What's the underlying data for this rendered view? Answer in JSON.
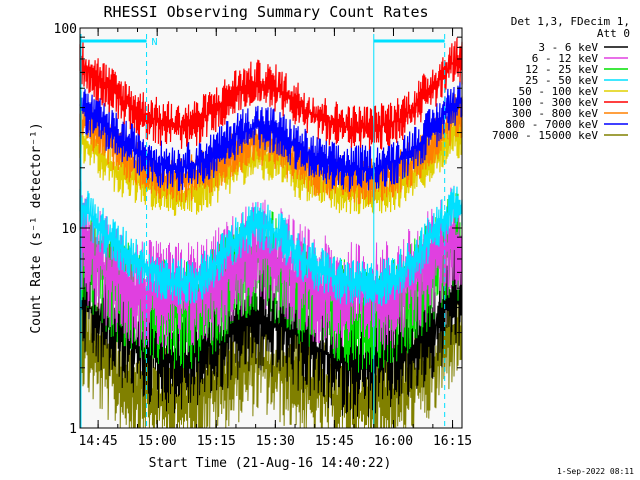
{
  "chart_data": {
    "type": "line",
    "title": "RHESSI Observing Summary Count Rates",
    "xlabel": "Start Time (21-Aug-16 14:40:22)",
    "ylabel": "Count Rate (s⁻¹ detector⁻¹)",
    "y_scale": "log",
    "ylim": [
      1,
      100
    ],
    "xlim_minutes_after_start": [
      0,
      97
    ],
    "x_ticks": [
      {
        "label": "14:45",
        "minutes": 4.6
      },
      {
        "label": "15:00",
        "minutes": 19.6
      },
      {
        "label": "15:15",
        "minutes": 34.6
      },
      {
        "label": "15:30",
        "minutes": 49.6
      },
      {
        "label": "15:45",
        "minutes": 64.6
      },
      {
        "label": "16:00",
        "minutes": 79.6
      },
      {
        "label": "16:15",
        "minutes": 94.6
      }
    ],
    "y_ticks": [
      {
        "label": "1",
        "value": 1
      },
      {
        "label": "10",
        "value": 10
      },
      {
        "label": "100",
        "value": 100
      }
    ],
    "legend_header": [
      "Det 1,3, FDecim 1,",
      "Att 0"
    ],
    "legend_position": "right-outside",
    "grid": false,
    "night_markers": [
      {
        "label": "N",
        "start_minutes": 0,
        "end_minutes": 16.9
      },
      {
        "label": "",
        "start_minutes": 74.6,
        "end_minutes": 92.6
      }
    ],
    "x": [
      0,
      5,
      10,
      15,
      20,
      25,
      30,
      35,
      40,
      45,
      50,
      55,
      60,
      65,
      70,
      75,
      80,
      85,
      90,
      95
    ],
    "series": [
      {
        "name": "3 - 6 keV",
        "color": "#000000",
        "values": [
          4.5,
          3.5,
          3.0,
          2.6,
          2.3,
          2.2,
          2.4,
          2.7,
          3.2,
          3.5,
          3.3,
          2.9,
          2.5,
          2.2,
          2.1,
          2.1,
          2.3,
          2.6,
          3.2,
          4.5
        ]
      },
      {
        "name": "6 - 12 keV",
        "color": "#e040e0",
        "values": [
          8.5,
          6.5,
          5.5,
          4.8,
          4.5,
          4.5,
          4.7,
          5.3,
          6.5,
          7.5,
          7.0,
          5.8,
          5.0,
          4.6,
          4.5,
          4.5,
          4.8,
          5.5,
          7.0,
          9.0
        ]
      },
      {
        "name": "12 - 25 keV",
        "color": "#00e000",
        "values": [
          7.5,
          6.0,
          5.0,
          4.2,
          3.8,
          3.6,
          3.8,
          4.5,
          5.8,
          6.8,
          6.3,
          5.0,
          4.2,
          3.8,
          3.6,
          3.6,
          4.0,
          4.8,
          6.2,
          8.0
        ]
      },
      {
        "name": "25 - 50 keV",
        "color": "#00e0ff",
        "values": [
          13.5,
          10.0,
          8.0,
          6.8,
          5.8,
          5.3,
          5.5,
          6.8,
          9.0,
          10.5,
          9.5,
          7.5,
          6.3,
          5.6,
          5.2,
          5.2,
          5.7,
          7.0,
          9.5,
          13.0
        ]
      },
      {
        "name": "50 - 100 keV",
        "color": "#e0d000",
        "values": [
          28.5,
          23.0,
          19.0,
          17.0,
          15.5,
          14.8,
          15.3,
          17.5,
          21.0,
          23.0,
          21.5,
          18.5,
          16.5,
          15.5,
          15.0,
          15.0,
          16.0,
          18.5,
          23.0,
          29.0
        ]
      },
      {
        "name": "100 - 300 keV",
        "color": "#ff0000",
        "values": [
          68.0,
          55.0,
          45.0,
          38.0,
          34.0,
          32.0,
          34.0,
          40.0,
          49.0,
          53.0,
          50.0,
          42.0,
          36.0,
          33.0,
          31.5,
          31.5,
          34.0,
          40.0,
          52.0,
          68.0
        ]
      },
      {
        "name": "300 - 800 keV",
        "color": "#ff8000",
        "values": [
          35.0,
          29.0,
          23.5,
          20.5,
          18.5,
          17.5,
          18.0,
          20.5,
          24.5,
          27.0,
          25.5,
          21.5,
          19.0,
          17.8,
          17.2,
          17.2,
          18.5,
          21.5,
          27.0,
          36.0
        ]
      },
      {
        "name": "800 - 7000 keV",
        "color": "#0000ff",
        "values": [
          41.0,
          34.0,
          28.0,
          24.0,
          21.0,
          20.0,
          21.0,
          24.0,
          29.5,
          32.5,
          30.5,
          25.5,
          22.0,
          20.3,
          19.8,
          19.8,
          21.5,
          25.0,
          32.0,
          42.0
        ]
      },
      {
        "name": "7000 - 15000 keV",
        "color": "#808000",
        "values": [
          3.0,
          2.2,
          1.8,
          1.6,
          1.4,
          1.35,
          1.5,
          1.7,
          2.0,
          2.2,
          2.0,
          1.75,
          1.5,
          1.4,
          1.35,
          1.35,
          1.45,
          1.7,
          2.1,
          3.2
        ]
      }
    ]
  },
  "footer": {
    "timestamp": "1-Sep-2022 08:11"
  }
}
